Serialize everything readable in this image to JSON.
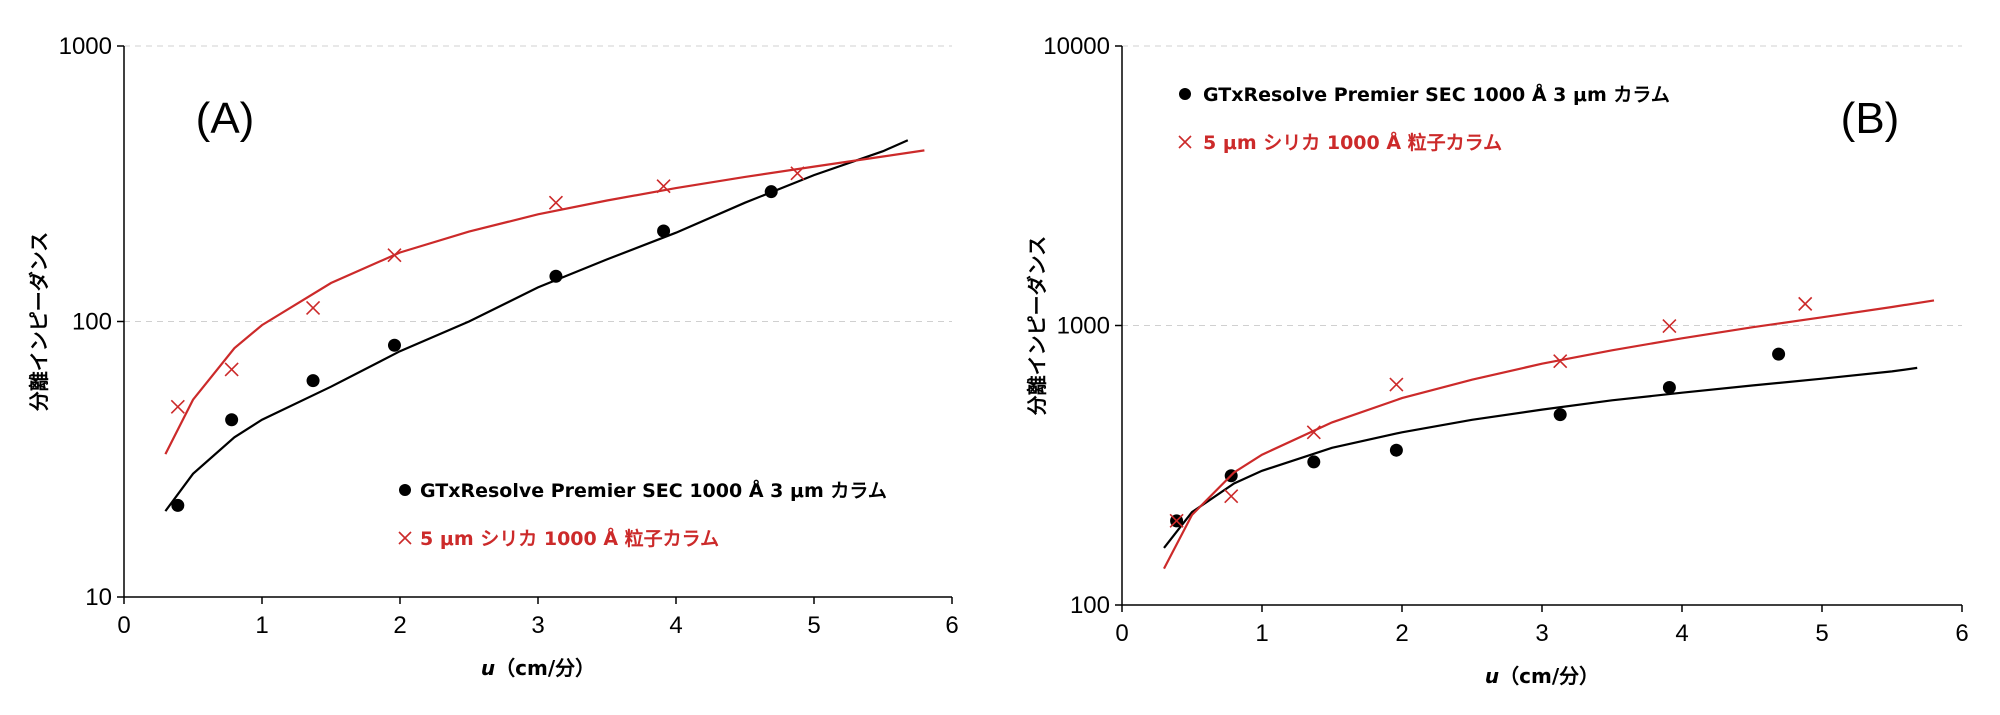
{
  "chart_data": [
    {
      "type": "scatter",
      "panel_label": "(A)",
      "xlabel_var": "u",
      "xlabel_unit": "（cm/分）",
      "ylabel": "分離インピーダンス",
      "xlim": [
        0,
        6
      ],
      "ylim": [
        10,
        1000
      ],
      "y_scale": "log",
      "x_ticks": [
        "0",
        "1",
        "2",
        "3",
        "4",
        "5",
        "6"
      ],
      "y_ticks": [
        "10",
        "100",
        "1000"
      ],
      "grid": "horizontal dashed",
      "legend_position": "lower-right",
      "series": [
        {
          "name": "GTxResolve Premier SEC 1000 Å 3 μm カラム",
          "marker": "circle",
          "color": "#000000",
          "points": [
            [
              0.39,
              21.5
            ],
            [
              0.78,
              44
            ],
            [
              1.37,
              61
            ],
            [
              1.96,
              82
            ],
            [
              3.13,
              146
            ],
            [
              3.91,
              213
            ],
            [
              4.69,
              296
            ]
          ],
          "trendline": {
            "x_range": [
              0.3,
              5.68
            ],
            "points": [
              [
                0.3,
                20.5
              ],
              [
                0.5,
                28
              ],
              [
                0.8,
                38
              ],
              [
                1.0,
                44
              ],
              [
                1.5,
                58
              ],
              [
                2.0,
                78
              ],
              [
                2.5,
                100
              ],
              [
                3.0,
                133
              ],
              [
                3.5,
                168
              ],
              [
                4.0,
                210
              ],
              [
                4.5,
                270
              ],
              [
                5.0,
                340
              ],
              [
                5.5,
                415
              ],
              [
                5.68,
                455
              ]
            ]
          }
        },
        {
          "name": "5 μm シリカ 1000 Å 粒子カラム",
          "marker": "x",
          "color": "#cc2a2a",
          "points": [
            [
              0.39,
              49
            ],
            [
              0.78,
              67
            ],
            [
              1.37,
              112
            ],
            [
              1.96,
              174
            ],
            [
              3.13,
              270
            ],
            [
              3.91,
              310
            ],
            [
              4.88,
              345
            ]
          ],
          "trendline": {
            "x_range": [
              0.3,
              5.8
            ],
            "points": [
              [
                0.3,
                33
              ],
              [
                0.5,
                52
              ],
              [
                0.8,
                80
              ],
              [
                1.0,
                97
              ],
              [
                1.5,
                138
              ],
              [
                2.0,
                178
              ],
              [
                2.5,
                212
              ],
              [
                3.0,
                245
              ],
              [
                3.5,
                275
              ],
              [
                4.0,
                305
              ],
              [
                4.5,
                335
              ],
              [
                5.0,
                365
              ],
              [
                5.5,
                397
              ],
              [
                5.8,
                418
              ]
            ]
          }
        }
      ]
    },
    {
      "type": "scatter",
      "panel_label": "(B)",
      "xlabel_var": "u",
      "xlabel_unit": "（cm/分）",
      "ylabel": "分離インピーダンス",
      "xlim": [
        0,
        6
      ],
      "ylim": [
        100,
        10000
      ],
      "y_scale": "log",
      "x_ticks": [
        "0",
        "1",
        "2",
        "3",
        "4",
        "5",
        "6"
      ],
      "y_ticks": [
        "100",
        "1000",
        "10000"
      ],
      "grid": "horizontal dashed",
      "legend_position": "top-left",
      "series": [
        {
          "name": "GTxResolve Premier SEC 1000 Å 3 μm カラム",
          "marker": "circle",
          "color": "#000000",
          "points": [
            [
              0.39,
              200
            ],
            [
              0.78,
              290
            ],
            [
              1.37,
              325
            ],
            [
              1.96,
              358
            ],
            [
              3.13,
              480
            ],
            [
              3.91,
              600
            ],
            [
              4.69,
              790
            ]
          ],
          "trendline": {
            "x_range": [
              0.3,
              5.68
            ],
            "points": [
              [
                0.3,
                160
              ],
              [
                0.5,
                215
              ],
              [
                0.8,
                272
              ],
              [
                1.0,
                302
              ],
              [
                1.5,
                365
              ],
              [
                2.0,
                415
              ],
              [
                2.5,
                460
              ],
              [
                3.0,
                500
              ],
              [
                3.5,
                540
              ],
              [
                4.0,
                575
              ],
              [
                4.5,
                610
              ],
              [
                5.0,
                645
              ],
              [
                5.5,
                685
              ],
              [
                5.68,
                705
              ]
            ]
          }
        },
        {
          "name": "5 μm シリカ 1000 Å 粒子カラム",
          "marker": "x",
          "color": "#cc2a2a",
          "points": [
            [
              0.39,
              200
            ],
            [
              0.78,
              245
            ],
            [
              1.37,
              415
            ],
            [
              1.96,
              615
            ],
            [
              3.13,
              745
            ],
            [
              3.91,
              995
            ],
            [
              4.88,
              1195
            ]
          ],
          "trendline": {
            "x_range": [
              0.3,
              5.8
            ],
            "points": [
              [
                0.3,
                135
              ],
              [
                0.5,
                210
              ],
              [
                0.8,
                298
              ],
              [
                1.0,
                345
              ],
              [
                1.5,
                450
              ],
              [
                2.0,
                550
              ],
              [
                2.5,
                640
              ],
              [
                3.0,
                730
              ],
              [
                3.5,
                815
              ],
              [
                4.0,
                900
              ],
              [
                4.5,
                985
              ],
              [
                5.0,
                1070
              ],
              [
                5.5,
                1165
              ],
              [
                5.8,
                1230
              ]
            ]
          }
        }
      ]
    }
  ]
}
